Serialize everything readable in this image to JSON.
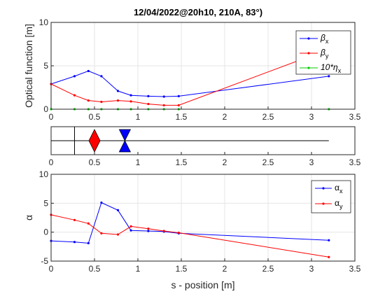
{
  "figure_title": "12/04/2022@20h10, 210A, 83°)",
  "chart_data": [
    {
      "type": "line",
      "ylabel": "Optical function [m]",
      "xlabel": "",
      "xlim": [
        0,
        3.5
      ],
      "ylim": [
        0,
        10
      ],
      "xticks": [
        0,
        0.5,
        1,
        1.5,
        2,
        2.5,
        3,
        3.5
      ],
      "yticks": [
        0,
        5,
        10
      ],
      "grid": true,
      "legend_position": "top-right",
      "series": [
        {
          "name": "βx",
          "name_main": "β",
          "name_sub": "x",
          "color": "#0000ff",
          "x": [
            0,
            0.27,
            0.43,
            0.58,
            0.77,
            0.92,
            1.12,
            1.3,
            1.47,
            3.2
          ],
          "y": [
            2.9,
            3.8,
            4.4,
            3.8,
            2.1,
            1.6,
            1.5,
            1.45,
            1.5,
            3.8
          ]
        },
        {
          "name": "βy",
          "name_main": "β",
          "name_sub": "y",
          "color": "#ff0000",
          "x": [
            0,
            0.27,
            0.43,
            0.58,
            0.77,
            0.92,
            1.12,
            1.3,
            1.47,
            3.2
          ],
          "y": [
            2.9,
            1.6,
            1.0,
            0.85,
            1.0,
            0.9,
            0.6,
            0.45,
            0.45,
            6.9
          ]
        },
        {
          "name": "10*ηx",
          "name_main": "10*η",
          "name_sub": "x",
          "color": "#00cc00",
          "x": [
            0,
            0.27,
            0.43,
            0.58,
            0.77,
            0.92,
            1.12,
            1.3,
            1.47,
            3.2
          ],
          "y": [
            0,
            0,
            0,
            0,
            0,
            0,
            0,
            0,
            0,
            0
          ]
        }
      ]
    },
    {
      "type": "diagram",
      "xlim": [
        0,
        3.5
      ],
      "xticks": [
        0,
        0.5,
        1,
        1.5,
        2,
        2.5,
        3,
        3.5
      ],
      "beamline_end": 3.2,
      "marker_position": 0.27,
      "elements": [
        {
          "kind": "focusing-quadrupole",
          "position": 0.5,
          "color": "#ff0000"
        },
        {
          "kind": "defocusing-quadrupole",
          "position": 0.85,
          "color": "#0000ff"
        }
      ]
    },
    {
      "type": "line",
      "ylabel": "α",
      "xlabel": "s - position [m]",
      "xlim": [
        0,
        3.5
      ],
      "ylim": [
        -5,
        10
      ],
      "xticks": [
        0,
        0.5,
        1,
        1.5,
        2,
        2.5,
        3,
        3.5
      ],
      "yticks": [
        -5,
        0,
        5,
        10
      ],
      "grid": true,
      "legend_position": "top-right",
      "series": [
        {
          "name": "αx",
          "name_main": "α",
          "name_sub": "x",
          "color": "#0000ff",
          "x": [
            0,
            0.27,
            0.43,
            0.58,
            0.77,
            0.92,
            1.12,
            1.3,
            1.47,
            3.2
          ],
          "y": [
            -1.5,
            -1.7,
            -1.9,
            5.1,
            3.8,
            0.3,
            0.2,
            0.1,
            -0.2,
            -1.4
          ]
        },
        {
          "name": "αy",
          "name_main": "α",
          "name_sub": "y",
          "color": "#ff0000",
          "x": [
            0,
            0.27,
            0.43,
            0.58,
            0.77,
            0.92,
            1.12,
            1.3,
            1.47,
            3.2
          ],
          "y": [
            3.0,
            2.1,
            1.5,
            -0.2,
            -0.4,
            1.0,
            0.6,
            0.2,
            -0.1,
            -4.3
          ]
        }
      ]
    }
  ]
}
